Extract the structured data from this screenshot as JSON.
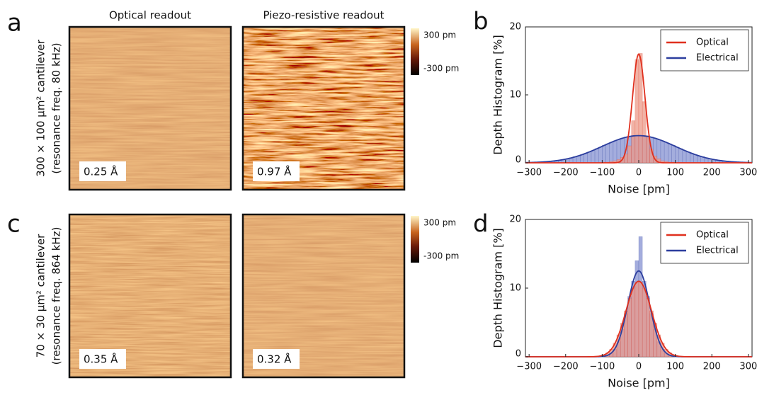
{
  "panels": {
    "labels": [
      "a",
      "b",
      "c",
      "d"
    ],
    "columns": [
      "Optical readout",
      "Piezo-resistive readout"
    ],
    "rows": [
      {
        "lines": [
          "300 × 100 μm² cantilever",
          "(resonance freq. 80 kHz)"
        ],
        "rms": [
          "0.25 Å",
          "0.97 Å"
        ],
        "colorbar": [
          "300 pm",
          "-300 pm"
        ]
      },
      {
        "lines": [
          "70 × 30 μm² cantilever",
          "(resonance freq. 864 kHz)"
        ],
        "rms": [
          "0.35 Å",
          "0.32 Å"
        ],
        "colorbar": [
          "300 pm",
          "-300 pm"
        ]
      }
    ]
  },
  "chart_data": [
    {
      "type": "histogram",
      "ylabel": "Depth Histogram [%]",
      "xlabel": "Noise [pm]",
      "bins": [
        -300,
        -290,
        -280,
        -270,
        -260,
        -250,
        -240,
        -230,
        -220,
        -210,
        -200,
        -190,
        -180,
        -170,
        -160,
        -150,
        -140,
        -130,
        -120,
        -110,
        -100,
        -90,
        -80,
        -70,
        -60,
        -50,
        -40,
        -30,
        -20,
        -10,
        0,
        10,
        20,
        30,
        40,
        50,
        60,
        70,
        80,
        90,
        100,
        110,
        120,
        130,
        140,
        150,
        160,
        170,
        180,
        190,
        200,
        210,
        220,
        230,
        240,
        250,
        260,
        270,
        280,
        290,
        300
      ],
      "series": [
        {
          "name": "Optical",
          "color": "#e0301e",
          "bar_color": "#ec9a88",
          "values": [
            0,
            0,
            0,
            0,
            0,
            0,
            0,
            0,
            0,
            0,
            0,
            0,
            0,
            0,
            0,
            0,
            0,
            0,
            0,
            0,
            0.1,
            0.1,
            0.2,
            0.3,
            0.5,
            0.8,
            1.3,
            2.5,
            6.2,
            15.2,
            16.1,
            9.0,
            4.0,
            2.0,
            1.0,
            0.6,
            0.3,
            0.2,
            0.1,
            0.1,
            0,
            0,
            0,
            0,
            0,
            0,
            0,
            0,
            0,
            0,
            0,
            0,
            0,
            0,
            0,
            0,
            0,
            0,
            0,
            0
          ],
          "fit": {
            "mean": 0,
            "sigma": 17,
            "peak": 16
          }
        },
        {
          "name": "Electrical",
          "color": "#2c3e9e",
          "bar_color": "#8592d2",
          "values": [
            0.1,
            0.1,
            0.1,
            0.1,
            0.2,
            0.2,
            0.3,
            0.3,
            0.4,
            0.5,
            0.6,
            0.7,
            0.9,
            1.0,
            1.2,
            1.4,
            1.6,
            1.8,
            2.1,
            2.3,
            2.6,
            2.8,
            3.0,
            3.2,
            3.4,
            3.6,
            3.8,
            3.9,
            4.0,
            4.0,
            4.0,
            4.0,
            3.9,
            3.8,
            3.6,
            3.4,
            3.2,
            3.0,
            2.8,
            2.6,
            2.3,
            2.1,
            1.8,
            1.6,
            1.4,
            1.2,
            1.0,
            0.9,
            0.7,
            0.6,
            0.5,
            0.4,
            0.3,
            0.3,
            0.2,
            0.2,
            0.1,
            0.1,
            0.1,
            0.1
          ],
          "fit": {
            "mean": 0,
            "sigma": 100,
            "peak": 4
          }
        }
      ],
      "xlim": [
        -310,
        310
      ],
      "ylim": [
        0,
        20
      ],
      "xticks": [
        {
          "value": -300,
          "label": "−300"
        },
        {
          "value": -200,
          "label": "−200"
        },
        {
          "value": -100,
          "label": "−100"
        },
        0,
        100,
        200,
        300
      ],
      "yticks": [
        0,
        10,
        20
      ],
      "legend": "upper right"
    },
    {
      "type": "histogram",
      "ylabel": "Depth Histogram [%]",
      "xlabel": "Noise [pm]",
      "bins": [
        -300,
        -290,
        -280,
        -270,
        -260,
        -250,
        -240,
        -230,
        -220,
        -210,
        -200,
        -190,
        -180,
        -170,
        -160,
        -150,
        -140,
        -130,
        -120,
        -110,
        -100,
        -90,
        -80,
        -70,
        -60,
        -50,
        -40,
        -30,
        -20,
        -10,
        0,
        10,
        20,
        30,
        40,
        50,
        60,
        70,
        80,
        90,
        100,
        110,
        120,
        130,
        140,
        150,
        160,
        170,
        180,
        190,
        200,
        210,
        220,
        230,
        240,
        250,
        260,
        270,
        280,
        290,
        300
      ],
      "series": [
        {
          "name": "Optical",
          "color": "#e0301e",
          "bar_color": "#ec9a88",
          "values": [
            0,
            0,
            0,
            0,
            0,
            0,
            0,
            0,
            0,
            0,
            0,
            0,
            0,
            0,
            0,
            0,
            0,
            0,
            0,
            0.1,
            0.3,
            0.6,
            1.1,
            2.0,
            3.2,
            4.9,
            6.7,
            8.5,
            10.0,
            10.9,
            10.9,
            10.0,
            8.5,
            6.7,
            4.9,
            3.2,
            2.0,
            1.1,
            0.6,
            0.3,
            0.1,
            0,
            0,
            0,
            0,
            0,
            0,
            0,
            0,
            0,
            0,
            0,
            0,
            0,
            0,
            0,
            0,
            0,
            0,
            0
          ],
          "fit": {
            "mean": 0,
            "sigma": 35,
            "peak": 11
          }
        },
        {
          "name": "Electrical",
          "color": "#2c3e9e",
          "bar_color": "#8592d2",
          "values": [
            0,
            0,
            0,
            0,
            0,
            0,
            0,
            0,
            0,
            0,
            0,
            0,
            0,
            0,
            0,
            0,
            0,
            0,
            0,
            0,
            0.1,
            0.2,
            0.5,
            1.1,
            2.2,
            4.0,
            6.3,
            8.8,
            11.0,
            14.0,
            17.5,
            11.0,
            8.8,
            6.3,
            4.0,
            2.2,
            1.1,
            0.5,
            0.2,
            0.1,
            0,
            0,
            0,
            0,
            0,
            0,
            0,
            0,
            0,
            0,
            0,
            0,
            0,
            0,
            0,
            0,
            0,
            0,
            0,
            0
          ],
          "fit": {
            "mean": 0,
            "sigma": 30,
            "peak": 12.5
          }
        }
      ],
      "xlim": [
        -310,
        310
      ],
      "ylim": [
        0,
        20
      ],
      "xticks": [
        {
          "value": -300,
          "label": "−300"
        },
        {
          "value": -200,
          "label": "−200"
        },
        {
          "value": -100,
          "label": "−100"
        },
        0,
        100,
        200,
        300
      ],
      "yticks": [
        0,
        10,
        20
      ],
      "legend": "upper right"
    }
  ]
}
